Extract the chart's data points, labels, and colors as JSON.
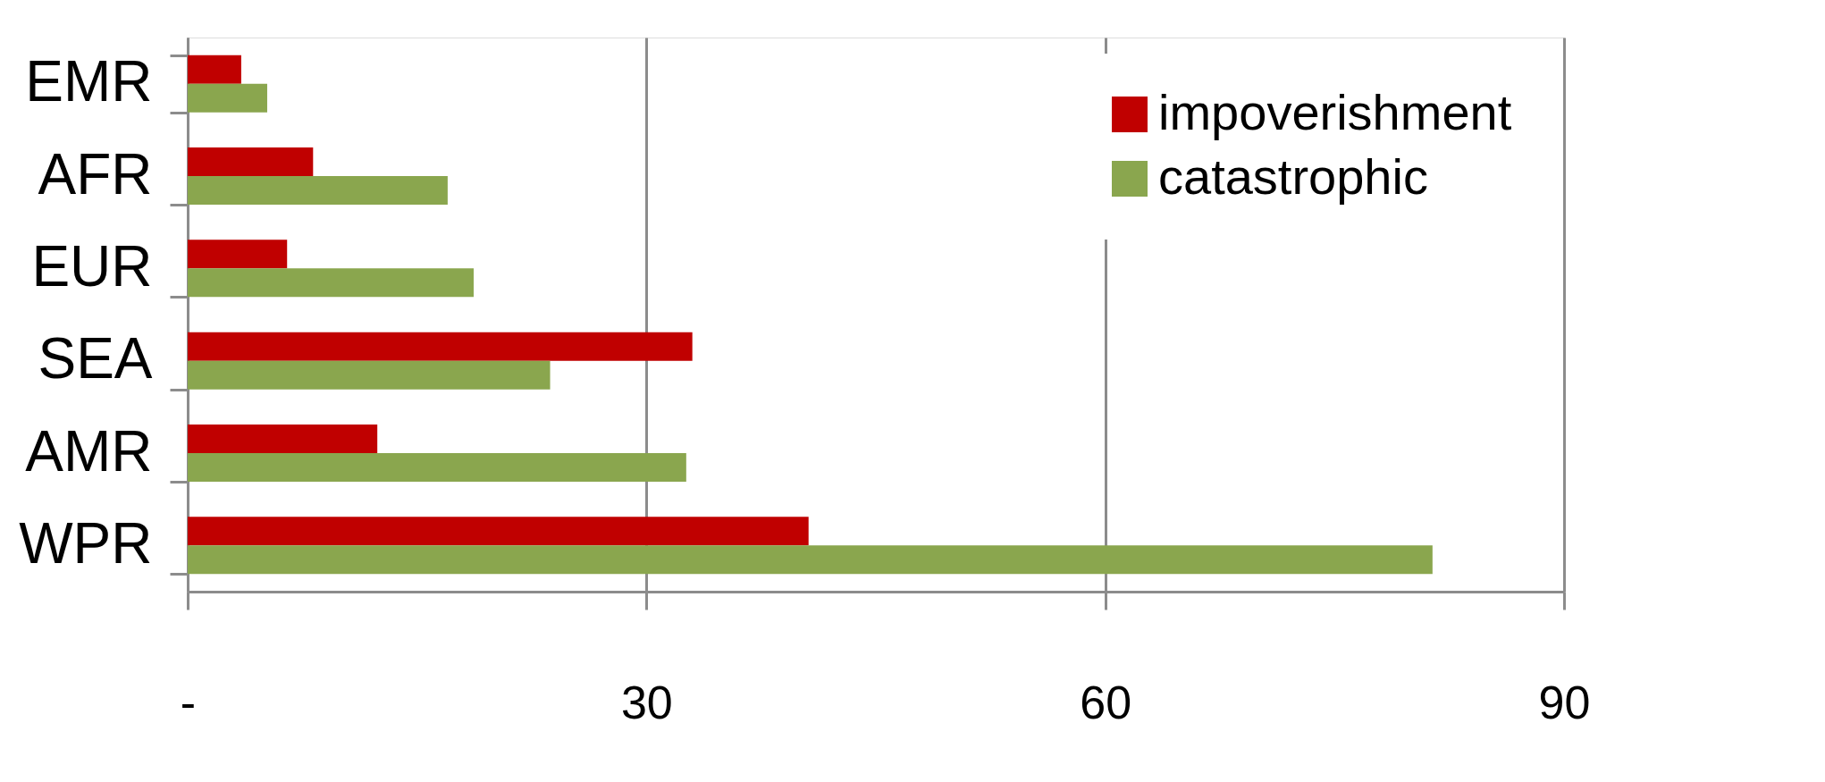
{
  "chart_data": {
    "type": "bar",
    "orientation": "horizontal",
    "categories": [
      "EMR",
      "AFR",
      "EUR",
      "SEA",
      "AMR",
      "WPR"
    ],
    "series": [
      {
        "name": "impoverishment",
        "color": "#c00000",
        "values": [
          3.5,
          8.2,
          6.5,
          33.0,
          12.4,
          40.6
        ]
      },
      {
        "name": "catastrophic",
        "color": "#8aa64e",
        "values": [
          5.2,
          17.0,
          18.7,
          23.7,
          32.6,
          81.4
        ]
      }
    ],
    "xlim": [
      0,
      90
    ],
    "xticks": [
      {
        "value": 0,
        "label": "-"
      },
      30,
      60,
      90
    ],
    "grid": "x",
    "legend": "top right"
  }
}
